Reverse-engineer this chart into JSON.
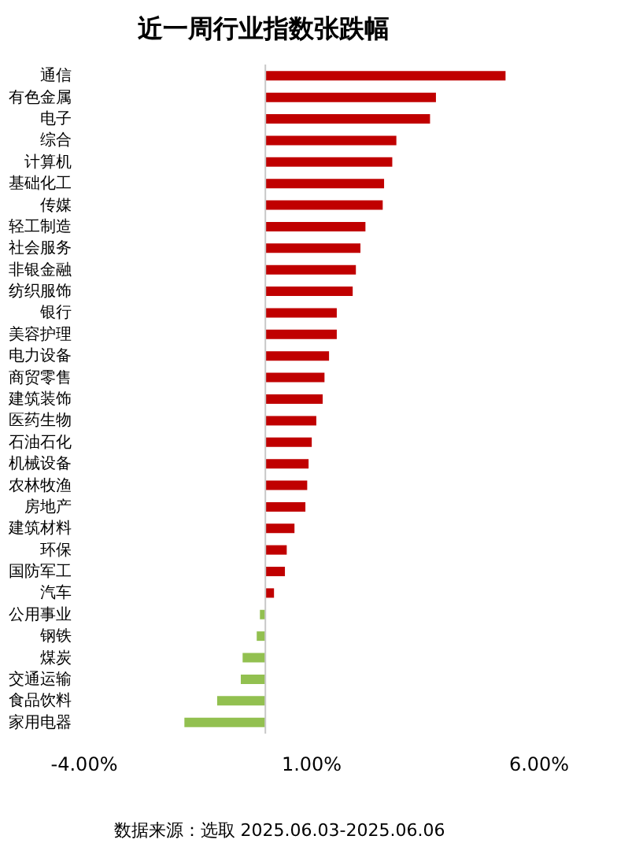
{
  "chart_data": {
    "type": "bar",
    "orientation": "horizontal",
    "title": "近一周行业指数张跌幅",
    "categories": [
      "通信",
      "有色金属",
      "电子",
      "综合",
      "计算机",
      "基础化工",
      "传媒",
      "轻工制造",
      "社会服务",
      "非银金融",
      "纺织服饰",
      "银行",
      "美容护理",
      "电力设备",
      "商贸零售",
      "建筑装饰",
      "医药生物",
      "石油石化",
      "机械设备",
      "农林牧渔",
      "房地产",
      "建筑材料",
      "环保",
      "国防军工",
      "汽车",
      "公用事业",
      "钢铁",
      "煤炭",
      "交通运输",
      "食品饮料",
      "家用电器"
    ],
    "values": [
      5.28,
      3.75,
      3.62,
      2.88,
      2.79,
      2.61,
      2.58,
      2.2,
      2.09,
      1.99,
      1.92,
      1.57,
      1.57,
      1.4,
      1.3,
      1.26,
      1.12,
      1.02,
      0.95,
      0.92,
      0.88,
      0.64,
      0.47,
      0.43,
      0.19,
      -0.12,
      -0.19,
      -0.5,
      -0.54,
      -1.06,
      -1.78
    ],
    "colors": [
      "#c00000",
      "#c00000",
      "#c00000",
      "#c00000",
      "#c00000",
      "#c00000",
      "#c00000",
      "#c00000",
      "#c00000",
      "#c00000",
      "#c00000",
      "#c00000",
      "#c00000",
      "#c00000",
      "#c00000",
      "#c00000",
      "#c00000",
      "#c00000",
      "#c00000",
      "#c00000",
      "#c00000",
      "#c00000",
      "#c00000",
      "#c00000",
      "#c00000",
      "#92c050",
      "#92c050",
      "#92c050",
      "#92c050",
      "#92c050",
      "#92c050"
    ],
    "xlim": [
      -4,
      6
    ],
    "xticks": [
      {
        "value": -4,
        "label": "-4.00%"
      },
      {
        "value": 1,
        "label": "1.00%"
      },
      {
        "value": 6,
        "label": "6.00%"
      }
    ],
    "grid": false,
    "annotations": [
      "数据来源：选取 2025.06.03-2025.06.06"
    ]
  }
}
